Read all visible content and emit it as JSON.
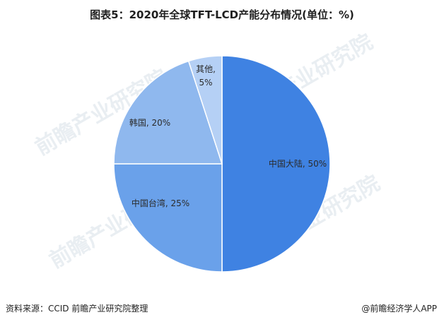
{
  "title": "图表5：2020年全球TFT-LCD产能分布情况(单位：%)",
  "source": "资料来源：CCID 前瞻产业研究院整理",
  "brand": "@前瞻经济学人APP",
  "watermark": "前瞻产业研究院",
  "colors": {
    "slice_1": "#3f82e2",
    "slice_2": "#6aa1ea",
    "slice_3": "#8fb8ee",
    "slice_4": "#b5d0f5",
    "border": "#ffffff"
  },
  "chart_data": {
    "type": "pie",
    "title": "图表5：2020年全球TFT-LCD产能分布情况(单位：%)",
    "unit": "%",
    "slices": [
      {
        "label": "中国大陆",
        "value": 50,
        "display": "中国大陆, 50%"
      },
      {
        "label": "中国台湾",
        "value": 25,
        "display": "中国台湾, 25%"
      },
      {
        "label": "韩国",
        "value": 20,
        "display": "韩国, 20%"
      },
      {
        "label": "其他",
        "value": 5,
        "display_line1": "其他,",
        "display_line2": "5%"
      }
    ]
  }
}
